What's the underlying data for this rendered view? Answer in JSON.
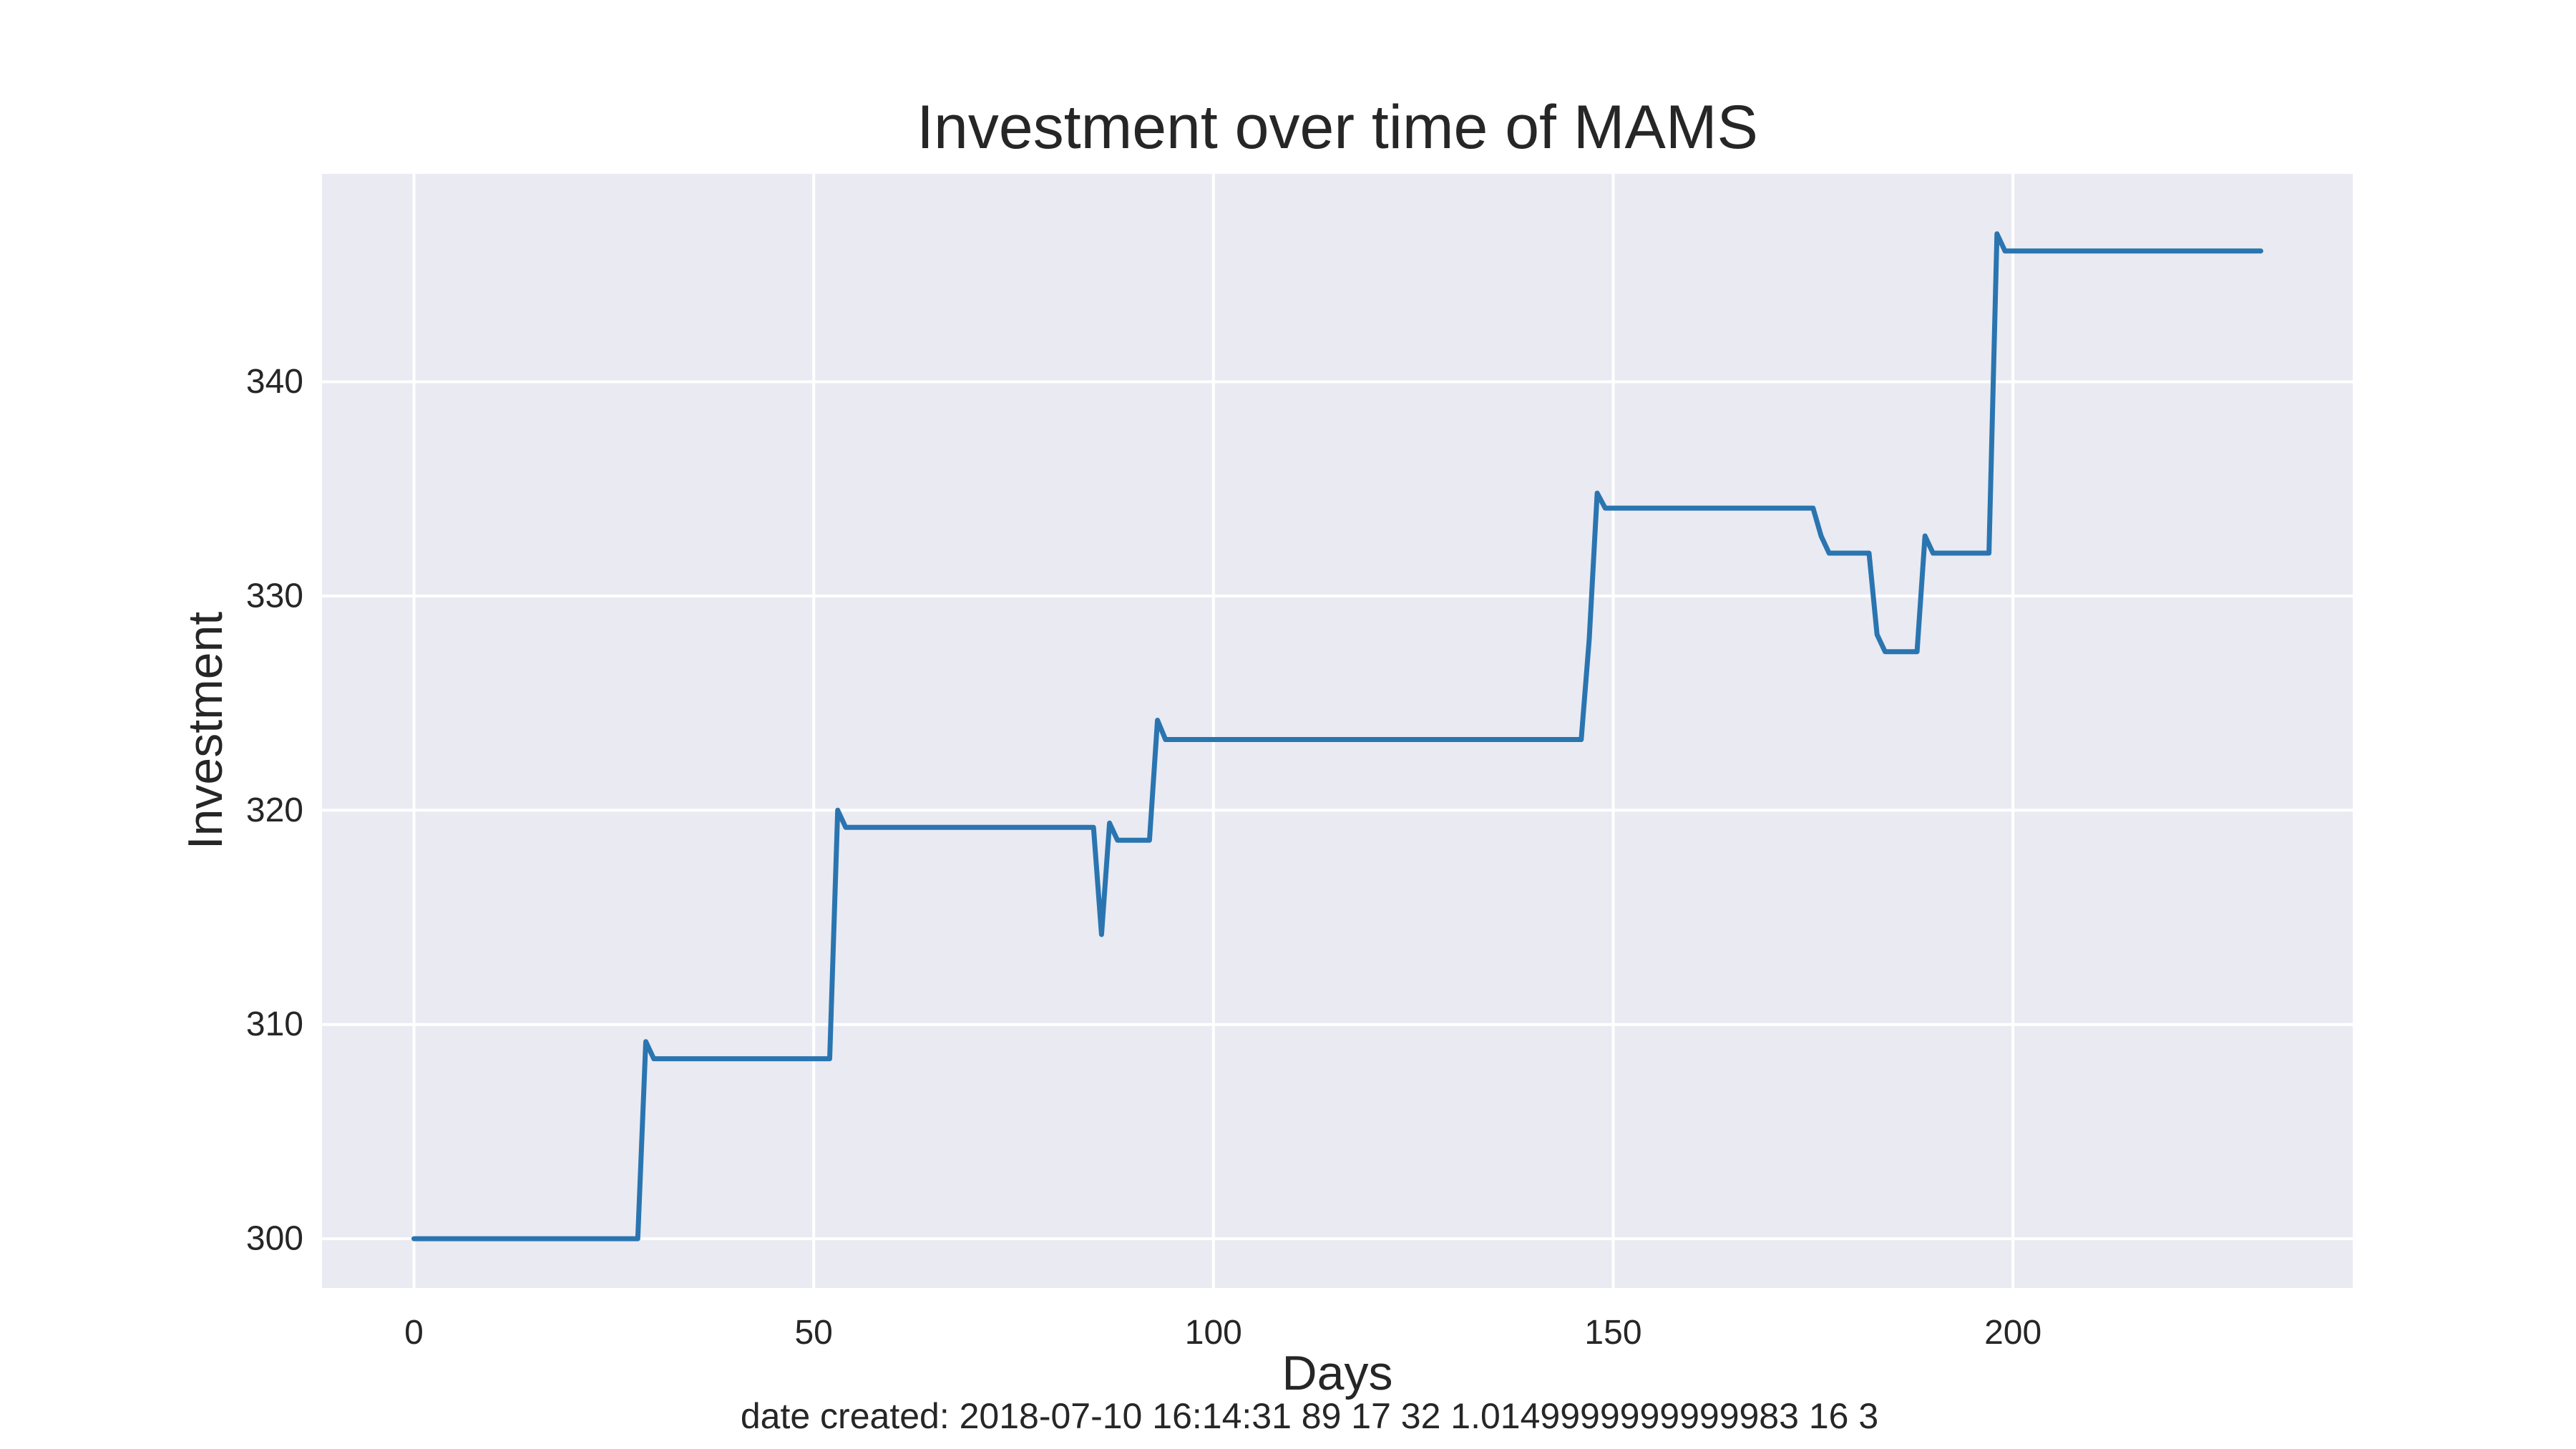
{
  "chart_data": {
    "type": "line",
    "title": "Investment over time of MAMS",
    "xlabel": "Days",
    "ylabel": "Investment",
    "footer": "date created: 2018-07-10 16:14:31 89 17 32 1.0149999999999983 16 3",
    "xlim": [
      -11.5,
      242.5
    ],
    "ylim": [
      297.7,
      349.7
    ],
    "x_ticks": [
      0,
      50,
      100,
      150,
      200
    ],
    "x_tick_labels": [
      "0",
      "50",
      "100",
      "150",
      "200"
    ],
    "y_ticks": [
      300,
      310,
      320,
      330,
      340
    ],
    "y_tick_labels": [
      "300",
      "310",
      "320",
      "330",
      "340"
    ],
    "grid": true,
    "style": {
      "background": "#eaeaf2",
      "grid_color": "#ffffff",
      "line_color": "#2a75b0"
    },
    "series": [
      {
        "x": [
          0,
          28,
          29,
          30,
          52,
          53,
          54,
          85,
          86,
          87,
          88,
          92,
          93,
          94,
          146,
          147,
          148,
          149,
          175,
          176,
          177,
          182,
          183,
          184,
          188,
          189,
          190,
          197,
          198,
          199,
          231
        ],
        "y": [
          300,
          300,
          309.2,
          308.4,
          308.4,
          320.0,
          319.2,
          319.2,
          314.2,
          319.4,
          318.6,
          318.6,
          324.2,
          323.3,
          323.3,
          328.0,
          334.8,
          334.1,
          334.1,
          332.8,
          332.0,
          332.0,
          328.2,
          327.4,
          327.4,
          332.8,
          332.0,
          332.0,
          346.9,
          346.1,
          346.1
        ]
      }
    ]
  }
}
